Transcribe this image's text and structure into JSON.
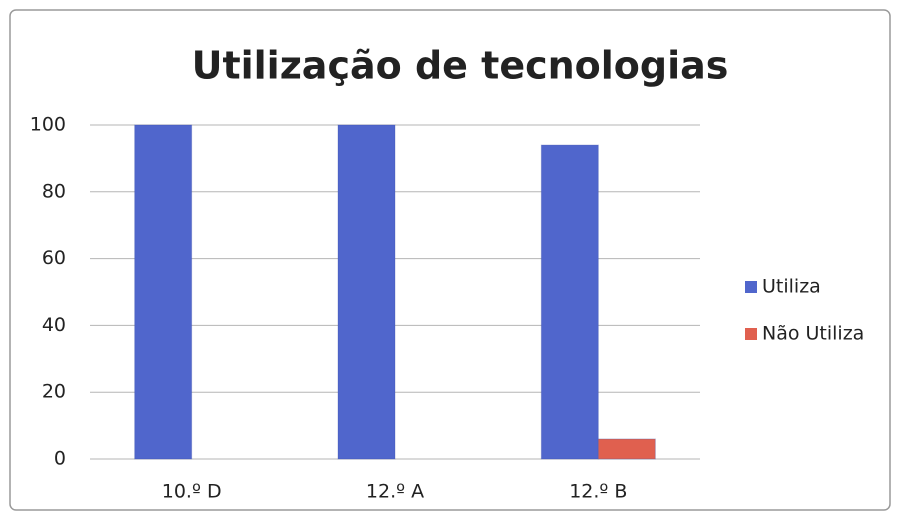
{
  "chart_data": {
    "type": "bar",
    "title": "Utilização de tecnologias",
    "categories": [
      "10.º D",
      "12.º A",
      "12.º B"
    ],
    "series": [
      {
        "name": "Utiliza",
        "color": "#5066cc",
        "values": [
          100,
          100,
          94
        ]
      },
      {
        "name": "Não Utiliza",
        "color": "#e0604f",
        "values": [
          0,
          0,
          6
        ]
      }
    ],
    "ylim": [
      0,
      100
    ],
    "yticks": [
      0,
      20,
      40,
      60,
      80,
      100
    ],
    "grid": true,
    "legend": "right"
  }
}
